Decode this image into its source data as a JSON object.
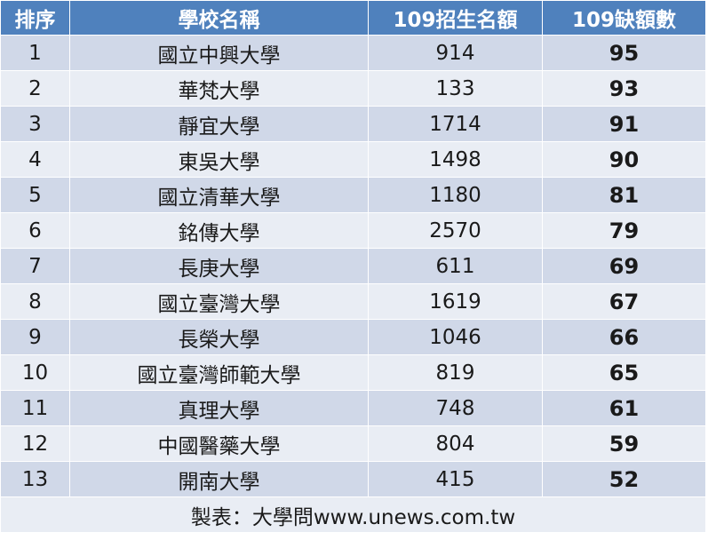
{
  "table": {
    "headers": {
      "rank": "排序",
      "school": "學校名稱",
      "quota": "109招生名額",
      "vacancy": "109缺額數"
    },
    "rows": [
      {
        "rank": "1",
        "school": "國立中興大學",
        "quota": "914",
        "vacancy": "95"
      },
      {
        "rank": "2",
        "school": "華梵大學",
        "quota": "133",
        "vacancy": "93"
      },
      {
        "rank": "3",
        "school": "靜宜大學",
        "quota": "1714",
        "vacancy": "91"
      },
      {
        "rank": "4",
        "school": "東吳大學",
        "quota": "1498",
        "vacancy": "90"
      },
      {
        "rank": "5",
        "school": "國立清華大學",
        "quota": "1180",
        "vacancy": "81"
      },
      {
        "rank": "6",
        "school": "銘傳大學",
        "quota": "2570",
        "vacancy": "79"
      },
      {
        "rank": "7",
        "school": "長庚大學",
        "quota": "611",
        "vacancy": "69"
      },
      {
        "rank": "8",
        "school": "國立臺灣大學",
        "quota": "1619",
        "vacancy": "67"
      },
      {
        "rank": "9",
        "school": "長榮大學",
        "quota": "1046",
        "vacancy": "66"
      },
      {
        "rank": "10",
        "school": "國立臺灣師範大學",
        "quota": "819",
        "vacancy": "65"
      },
      {
        "rank": "11",
        "school": "真理大學",
        "quota": "748",
        "vacancy": "61"
      },
      {
        "rank": "12",
        "school": "中國醫藥大學",
        "quota": "804",
        "vacancy": "59"
      },
      {
        "rank": "13",
        "school": "開南大學",
        "quota": "415",
        "vacancy": "52"
      }
    ],
    "footer": "製表：大學問www.unews.com.tw"
  },
  "colors": {
    "header_bg": "#4f81bd",
    "row_odd_bg": "#d0d8e8",
    "row_even_bg": "#e9edf4"
  }
}
